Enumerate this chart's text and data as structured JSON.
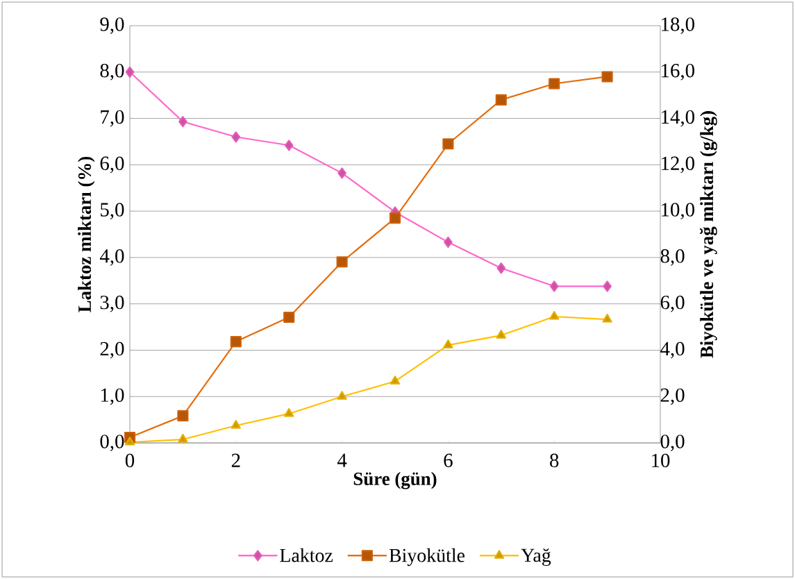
{
  "chart_data": {
    "type": "line",
    "xlabel": "Süre (gün)",
    "ylabel": "Laktoz miktarı (%)",
    "y2label": "Biyokütle ve yağ miktarı (g/kg)",
    "x": [
      0,
      1,
      2,
      3,
      4,
      5,
      6,
      7,
      8,
      9
    ],
    "series": [
      {
        "name": "Laktoz",
        "color": "#ff66cc",
        "marker": "diamond",
        "values": [
          8.0,
          6.93,
          6.6,
          6.42,
          5.82,
          4.98,
          4.33,
          3.77,
          3.38,
          3.38
        ]
      },
      {
        "name": "Biyokütle",
        "color": "#e46c0a",
        "marker": "square",
        "axis": "y2",
        "values": [
          0.24,
          1.17,
          4.37,
          5.42,
          7.81,
          9.7,
          12.9,
          14.8,
          15.5,
          15.8
        ]
      },
      {
        "name": "Yağ",
        "color": "#ffc000",
        "marker": "triangle",
        "axis": "y2",
        "values": [
          0.03,
          0.15,
          0.75,
          1.26,
          2.0,
          2.66,
          4.22,
          4.64,
          5.45,
          5.33
        ]
      }
    ],
    "xlim": [
      0,
      10
    ],
    "xticks": [
      0,
      2,
      4,
      6,
      8,
      10
    ],
    "ylim": [
      0,
      9
    ],
    "yticks": [
      {
        "value": 0,
        "label": "0,0"
      },
      {
        "value": 1,
        "label": "1,0"
      },
      {
        "value": 2,
        "label": "2,0"
      },
      {
        "value": 3,
        "label": "3,0"
      },
      {
        "value": 4,
        "label": "4,0"
      },
      {
        "value": 5,
        "label": "5,0"
      },
      {
        "value": 6,
        "label": "6,0"
      },
      {
        "value": 7,
        "label": "7,0"
      },
      {
        "value": 8,
        "label": "8,0"
      },
      {
        "value": 9,
        "label": "9,0"
      }
    ],
    "y2lim": [
      0,
      18
    ],
    "y2ticks": [
      {
        "value": 0,
        "label": "0,0"
      },
      {
        "value": 2,
        "label": "2,0"
      },
      {
        "value": 4,
        "label": "4,0"
      },
      {
        "value": 6,
        "label": "6,0"
      },
      {
        "value": 8,
        "label": "8,0"
      },
      {
        "value": 10,
        "label": "10,0"
      },
      {
        "value": 12,
        "label": "12,0"
      },
      {
        "value": 14,
        "label": "14,0"
      },
      {
        "value": 16,
        "label": "16,0"
      },
      {
        "value": 18,
        "label": "18,0"
      }
    ],
    "grid": "y",
    "legend": "bottom",
    "line_style": "solid"
  }
}
